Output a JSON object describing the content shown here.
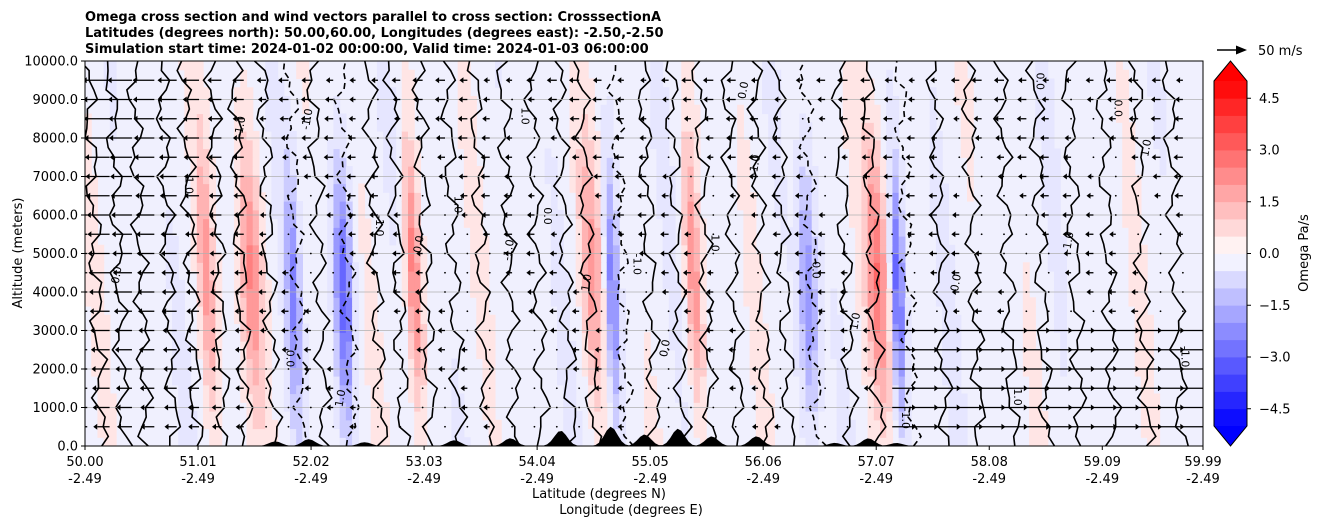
{
  "chart_data": {
    "type": "heatmap",
    "title_lines": [
      "Omega cross section and wind vectors parallel to cross section: CrosssectionA",
      "Latitudes (degrees north): 50.00,60.00, Longitudes (degrees east): -2.50,-2.50",
      "Simulation start time: 2024-01-02 00:00:00, Valid time: 2024-01-03 06:00:00"
    ],
    "ylabel": "Altitude (meters)",
    "xlabel_lines": [
      "Latitude (degrees N)",
      "Longitude (degrees E)"
    ],
    "ylim": [
      0,
      10000
    ],
    "xlim": [
      50.0,
      59.99
    ],
    "y_ticks": [
      {
        "value": 0,
        "label": "0.0"
      },
      {
        "value": 1000,
        "label": "1000.0"
      },
      {
        "value": 2000,
        "label": "2000.0"
      },
      {
        "value": 3000,
        "label": "3000.0"
      },
      {
        "value": 4000,
        "label": "4000.0"
      },
      {
        "value": 5000,
        "label": "5000.0"
      },
      {
        "value": 6000,
        "label": "6000.0"
      },
      {
        "value": 7000,
        "label": "7000.0"
      },
      {
        "value": 8000,
        "label": "8000.0"
      },
      {
        "value": 9000,
        "label": "9000.0"
      },
      {
        "value": 10000,
        "label": "10000.0"
      }
    ],
    "x_ticks": [
      {
        "value": 50.0,
        "lat": "50.00",
        "lon": "-2.49"
      },
      {
        "value": 51.01,
        "lat": "51.01",
        "lon": "-2.49"
      },
      {
        "value": 52.02,
        "lat": "52.02",
        "lon": "-2.49"
      },
      {
        "value": 53.03,
        "lat": "53.03",
        "lon": "-2.49"
      },
      {
        "value": 54.04,
        "lat": "54.04",
        "lon": "-2.49"
      },
      {
        "value": 55.05,
        "lat": "55.05",
        "lon": "-2.49"
      },
      {
        "value": 56.06,
        "lat": "56.06",
        "lon": "-2.49"
      },
      {
        "value": 57.07,
        "lat": "57.07",
        "lon": "-2.49"
      },
      {
        "value": 58.08,
        "lat": "58.08",
        "lon": "-2.49"
      },
      {
        "value": 59.09,
        "lat": "59.09",
        "lon": "-2.49"
      },
      {
        "value": 59.99,
        "lat": "59.99",
        "lon": "-2.49"
      }
    ],
    "grid": "horizontal",
    "colorbar": {
      "label": "Omega Pa/s",
      "range": [
        -5.0,
        5.0
      ],
      "ticks": [
        {
          "value": 4.5,
          "label": "4.5"
        },
        {
          "value": 3.0,
          "label": "3.0"
        },
        {
          "value": 1.5,
          "label": "1.5"
        },
        {
          "value": 0.0,
          "label": "0.0"
        },
        {
          "value": -1.5,
          "label": "−1.5"
        },
        {
          "value": -3.0,
          "label": "−3.0"
        },
        {
          "value": -4.5,
          "label": "−4.5"
        }
      ],
      "extend": "both",
      "colormap": "bwr"
    },
    "quiver_key": {
      "label": "50 m/s",
      "speed": 50
    },
    "contour_levels": [
      -1.0,
      0.0,
      1.0
    ],
    "contour_label_texts": [
      "0.0",
      "1.0",
      "-1.0"
    ],
    "features": {
      "updraft_columns_lat": [
        51.15,
        51.55,
        53.0,
        54.6,
        55.5,
        57.15
      ],
      "downdraft_columns_lat": [
        51.9,
        52.35,
        54.75,
        56.5,
        57.3
      ],
      "wind_vectors": "leftward strong near 50.3-51.5N aloft, weak elsewhere, rightward near surface north of 57N"
    },
    "terrain_peaks": [
      {
        "lat": 51.3,
        "height": 0
      },
      {
        "lat": 51.7,
        "height": 120
      },
      {
        "lat": 52.0,
        "height": 180
      },
      {
        "lat": 52.5,
        "height": 100
      },
      {
        "lat": 53.3,
        "height": 150
      },
      {
        "lat": 53.8,
        "height": 200
      },
      {
        "lat": 54.25,
        "height": 400
      },
      {
        "lat": 54.7,
        "height": 500
      },
      {
        "lat": 55.0,
        "height": 300
      },
      {
        "lat": 55.3,
        "height": 450
      },
      {
        "lat": 55.6,
        "height": 250
      },
      {
        "lat": 56.0,
        "height": 250
      },
      {
        "lat": 56.7,
        "height": 80
      },
      {
        "lat": 57.0,
        "height": 200
      },
      {
        "lat": 57.25,
        "height": 80
      }
    ]
  }
}
